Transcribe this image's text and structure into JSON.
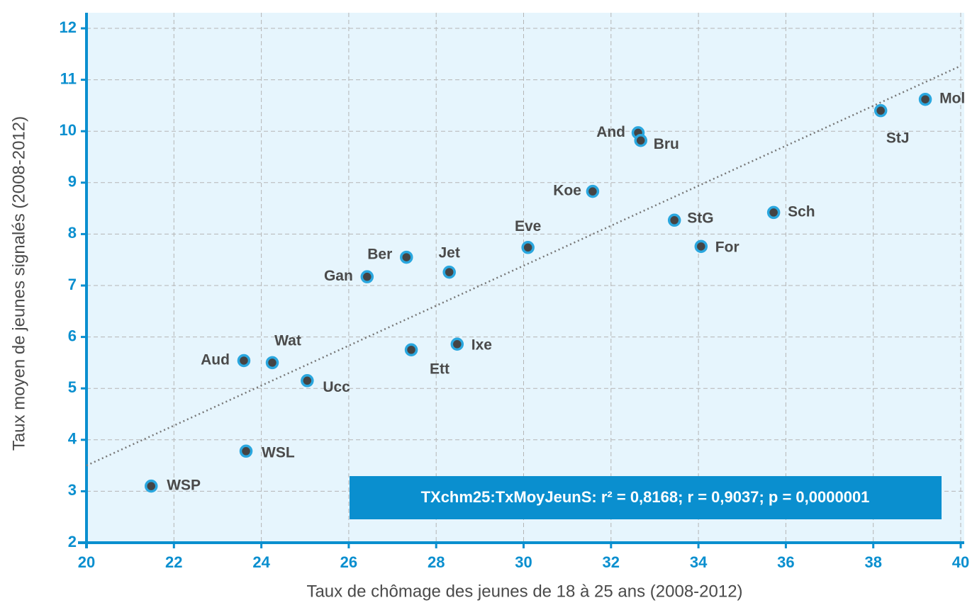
{
  "chart_data": {
    "type": "scatter",
    "x_label": "Taux de chômage des jeunes de 18 à 25 ans (2008-2012)",
    "y_label": "Taux moyen de jeunes signalés (2008-2012)",
    "annotation": "TXchm25:TxMoyJeunS: r² = 0,8168; r = 0,9037; p = 0,0000001",
    "labels": [
      "WSP",
      "WSL",
      "Aud",
      "Wat",
      "Ucc",
      "Gan",
      "Ber",
      "Ett",
      "Jet",
      "Ixe",
      "Eve",
      "Koe",
      "And",
      "Bru",
      "StG",
      "For",
      "Sch",
      "StJ",
      "Mol"
    ],
    "x": [
      21.48,
      23.65,
      23.6,
      24.25,
      25.05,
      26.42,
      27.32,
      27.43,
      28.3,
      28.48,
      30.1,
      31.58,
      32.62,
      32.68,
      33.45,
      34.06,
      35.72,
      38.17,
      39.19
    ],
    "y": [
      3.1,
      3.78,
      5.54,
      5.5,
      5.15,
      7.17,
      7.55,
      5.75,
      7.26,
      5.86,
      7.74,
      8.83,
      9.97,
      9.82,
      8.27,
      7.76,
      8.42,
      10.4,
      10.62
    ],
    "color": "#444444",
    "edge_color": "#2aa7df",
    "trendline": {
      "x": [
        20,
        40
      ],
      "y": [
        3.5,
        11.27
      ]
    },
    "xlim": [
      20,
      40
    ],
    "ylim": [
      2,
      12
    ],
    "xticks": [
      20,
      22,
      24,
      26,
      28,
      30,
      32,
      34,
      36,
      38,
      40
    ],
    "yticks": [
      2,
      3,
      4,
      5,
      6,
      7,
      8,
      9,
      10,
      11,
      12
    ],
    "grid": true
  }
}
